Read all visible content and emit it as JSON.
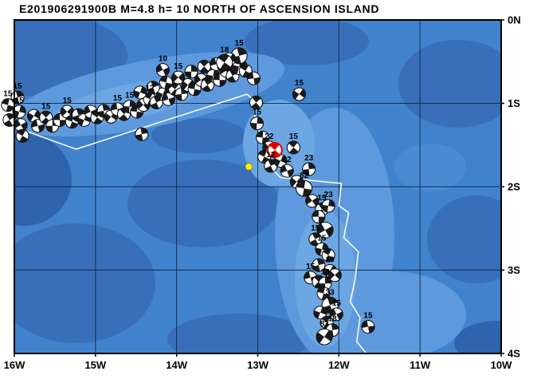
{
  "title": "E201906291900B M=4.8 h= 10 NORTH OF ASCENSION ISLAND",
  "map": {
    "lon_range": [
      -16,
      -10
    ],
    "lat_range": [
      -4,
      0
    ],
    "lon_ticks": [
      {
        "label": "16W",
        "lon": -16
      },
      {
        "label": "15W",
        "lon": -15
      },
      {
        "label": "14W",
        "lon": -14
      },
      {
        "label": "13W",
        "lon": -13
      },
      {
        "label": "12W",
        "lon": -12
      },
      {
        "label": "11W",
        "lon": -11
      },
      {
        "label": "10W",
        "lon": -10
      }
    ],
    "lat_ticks": [
      {
        "label": "0N",
        "lat": 0
      },
      {
        "label": "1S",
        "lat": -1
      },
      {
        "label": "2S",
        "lat": -2
      },
      {
        "label": "3S",
        "lat": -3
      },
      {
        "label": "4S",
        "lat": -4
      }
    ],
    "colors": {
      "ocean_base": "#4182cc",
      "ocean_dark": "#386fb8",
      "ocean_darker": "#2f63ae",
      "ocean_light": "#5d99dc",
      "ocean_lighter": "#6ca7e3",
      "boundary": "#ffffff",
      "beachball": "#1a1a1a",
      "highlight": "#dd0000",
      "station": "#ffee00"
    },
    "plate_boundary": [
      [
        -16.05,
        -1.22
      ],
      [
        -15.98,
        -1.29
      ],
      [
        -15.24,
        -1.55
      ],
      [
        -13.13,
        -0.89
      ],
      [
        -13.05,
        -0.97
      ],
      [
        -13.03,
        -1.2
      ],
      [
        -12.94,
        -1.46
      ],
      [
        -12.82,
        -1.79
      ],
      [
        -12.72,
        -1.89
      ],
      [
        -11.97,
        -1.96
      ],
      [
        -12.0,
        -2.23
      ],
      [
        -11.88,
        -2.31
      ],
      [
        -11.94,
        -2.61
      ],
      [
        -11.76,
        -2.78
      ],
      [
        -11.8,
        -3.11
      ],
      [
        -11.86,
        -3.38
      ],
      [
        -11.74,
        -3.57
      ],
      [
        -11.78,
        -3.86
      ],
      [
        -11.66,
        -4.0
      ]
    ],
    "beachballs": [
      [
        -16.08,
        -1.02,
        15,
        "15"
      ],
      [
        -16.06,
        -1.2,
        60,
        ""
      ],
      [
        -15.94,
        -1.1,
        105,
        "15"
      ],
      [
        -15.92,
        -1.26,
        150,
        ""
      ],
      [
        -15.9,
        -1.39,
        30,
        ""
      ],
      [
        -15.96,
        -0.93,
        75,
        "15"
      ],
      [
        -15.76,
        -1.15,
        120,
        ""
      ],
      [
        -15.71,
        -1.27,
        165,
        ""
      ],
      [
        -15.61,
        -1.17,
        45,
        "15"
      ],
      [
        -15.53,
        -1.27,
        90,
        ""
      ],
      [
        -15.44,
        -1.2,
        0,
        ""
      ],
      [
        -15.35,
        -1.1,
        135,
        "15"
      ],
      [
        -15.29,
        -1.22,
        20,
        ""
      ],
      [
        -15.21,
        -1.14,
        70,
        ""
      ],
      [
        -15.14,
        -1.2,
        110,
        ""
      ],
      [
        -15.06,
        -1.1,
        155,
        ""
      ],
      [
        -14.98,
        -1.17,
        35,
        ""
      ],
      [
        -14.9,
        -1.09,
        80,
        ""
      ],
      [
        -14.81,
        -1.16,
        125,
        ""
      ],
      [
        -14.73,
        -1.07,
        170,
        "15"
      ],
      [
        -14.65,
        -1.13,
        50,
        ""
      ],
      [
        -14.58,
        -1.04,
        95,
        "15"
      ],
      [
        -14.49,
        -1.1,
        5,
        ""
      ],
      [
        -14.41,
        -1.02,
        140,
        ""
      ],
      [
        -14.33,
        -0.95,
        25,
        "12"
      ],
      [
        -14.25,
        -0.99,
        65,
        ""
      ],
      [
        -14.17,
        -0.89,
        115,
        ""
      ],
      [
        -14.1,
        -0.95,
        160,
        ""
      ],
      [
        -14.02,
        -0.83,
        40,
        ""
      ],
      [
        -13.94,
        -0.89,
        85,
        ""
      ],
      [
        -13.86,
        -0.78,
        130,
        ""
      ],
      [
        -13.78,
        -0.83,
        10,
        ""
      ],
      [
        -13.7,
        -0.72,
        145,
        ""
      ],
      [
        -13.62,
        -0.78,
        55,
        ""
      ],
      [
        -13.55,
        -0.67,
        100,
        ""
      ],
      [
        -13.47,
        -0.72,
        0,
        ""
      ],
      [
        -13.39,
        -0.61,
        150,
        ""
      ],
      [
        -13.31,
        -0.67,
        60,
        ""
      ],
      [
        -13.23,
        -0.56,
        105,
        "",
        10
      ],
      [
        -13.15,
        -0.61,
        30,
        ""
      ],
      [
        -13.23,
        -0.43,
        75,
        "15",
        10
      ],
      [
        -13.35,
        -0.47,
        120,
        ""
      ],
      [
        -13.51,
        -0.53,
        165,
        ""
      ],
      [
        -13.66,
        -0.56,
        45,
        ""
      ],
      [
        -13.82,
        -0.62,
        90,
        ""
      ],
      [
        -13.98,
        -0.69,
        135,
        "15"
      ],
      [
        -14.13,
        -0.75,
        15,
        ""
      ],
      [
        -14.29,
        -0.81,
        70,
        ""
      ],
      [
        -14.45,
        -0.87,
        110,
        ""
      ],
      [
        -14.17,
        -0.6,
        155,
        "10"
      ],
      [
        -13.41,
        -0.51,
        35,
        "18",
        10
      ],
      [
        -14.43,
        -1.37,
        80,
        ""
      ],
      [
        -12.49,
        -0.89,
        125,
        "15"
      ],
      [
        -13.05,
        -0.7,
        170,
        ""
      ],
      [
        -13.02,
        -0.99,
        50,
        ""
      ],
      [
        -13.01,
        -1.24,
        95,
        "15"
      ],
      [
        -12.94,
        -1.41,
        5,
        ""
      ],
      [
        -12.86,
        -1.53,
        140,
        "22"
      ],
      [
        -12.92,
        -1.64,
        25,
        ""
      ],
      [
        -12.84,
        -1.75,
        65,
        "12"
      ],
      [
        -12.72,
        -1.69,
        115,
        ""
      ],
      [
        -12.64,
        -1.81,
        160,
        "12"
      ],
      [
        -12.56,
        -1.53,
        40,
        "15"
      ],
      [
        -12.37,
        -1.79,
        85,
        "23"
      ],
      [
        -12.52,
        -1.94,
        130,
        ""
      ],
      [
        -12.43,
        -2.02,
        10,
        "82",
        10
      ],
      [
        -12.33,
        -2.17,
        145,
        ""
      ],
      [
        -12.21,
        -2.27,
        55,
        "15"
      ],
      [
        -12.13,
        -2.23,
        100,
        "23"
      ],
      [
        -12.25,
        -2.36,
        0,
        ""
      ],
      [
        -12.17,
        -2.52,
        150,
        "",
        10
      ],
      [
        -12.29,
        -2.63,
        60,
        "15"
      ],
      [
        -12.21,
        -2.75,
        105,
        "15"
      ],
      [
        -12.13,
        -2.82,
        30,
        ""
      ],
      [
        -12.25,
        -2.94,
        75,
        ""
      ],
      [
        -12.11,
        -3.01,
        120,
        "19"
      ],
      [
        -12.35,
        -3.09,
        165,
        "15"
      ],
      [
        -12.25,
        -3.14,
        45,
        ""
      ],
      [
        -12.17,
        -3.16,
        90,
        "18"
      ],
      [
        -12.05,
        -3.06,
        135,
        ""
      ],
      [
        -12.19,
        -3.28,
        15,
        ""
      ],
      [
        -12.11,
        -3.42,
        70,
        "33",
        10
      ],
      [
        -12.23,
        -3.51,
        110,
        ""
      ],
      [
        -12.03,
        -3.53,
        155,
        "15"
      ],
      [
        -12.15,
        -3.63,
        35,
        ""
      ],
      [
        -12.08,
        -3.72,
        80,
        "18"
      ],
      [
        -12.18,
        -3.8,
        125,
        "83",
        10
      ],
      [
        -11.64,
        -3.68,
        170,
        "15"
      ]
    ],
    "highlight_event": {
      "lon": -12.79,
      "lat": -1.56,
      "rot": 40
    },
    "station_marker": {
      "lon": -13.11,
      "lat": -1.76
    }
  }
}
